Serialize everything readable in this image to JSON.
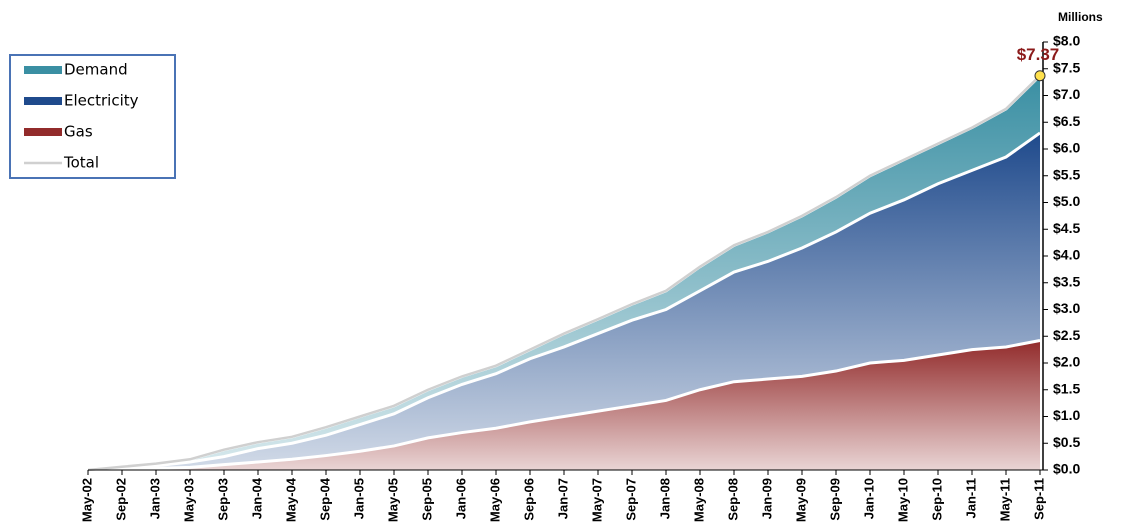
{
  "chart_data": {
    "type": "stacked-area",
    "y_axis_label": "Millions",
    "categories": [
      "May-02",
      "Sep-02",
      "Jan-03",
      "May-03",
      "Sep-03",
      "Jan-04",
      "May-04",
      "Sep-04",
      "Jan-05",
      "May-05",
      "Sep-05",
      "Jan-06",
      "May-06",
      "Sep-06",
      "Jan-07",
      "May-07",
      "Sep-07",
      "Jan-08",
      "May-08",
      "Sep-08",
      "Jan-09",
      "May-09",
      "Sep-09",
      "Jan-10",
      "May-10",
      "Sep-10",
      "Jan-11",
      "May-11",
      "Sep-11"
    ],
    "series": [
      {
        "name": "Demand",
        "type": "area",
        "color": "#3a8fa3",
        "values": [
          0,
          0.02,
          0.04,
          0.05,
          0.13,
          0.12,
          0.12,
          0.15,
          0.15,
          0.15,
          0.15,
          0.15,
          0.15,
          0.17,
          0.25,
          0.27,
          0.3,
          0.35,
          0.45,
          0.5,
          0.55,
          0.6,
          0.65,
          0.7,
          0.75,
          0.75,
          0.8,
          0.9,
          1.07
        ]
      },
      {
        "name": "Electricity",
        "type": "area",
        "color": "#1f4a8c",
        "values": [
          0,
          0.02,
          0.05,
          0.1,
          0.15,
          0.25,
          0.3,
          0.38,
          0.5,
          0.6,
          0.75,
          0.9,
          1.02,
          1.18,
          1.3,
          1.45,
          1.6,
          1.7,
          1.85,
          2.05,
          2.2,
          2.4,
          2.6,
          2.8,
          3.0,
          3.2,
          3.35,
          3.55,
          3.88
        ]
      },
      {
        "name": "Gas",
        "type": "area",
        "color": "#922b2b",
        "values": [
          0,
          0.02,
          0.03,
          0.05,
          0.1,
          0.15,
          0.2,
          0.27,
          0.35,
          0.45,
          0.6,
          0.7,
          0.78,
          0.9,
          1.0,
          1.1,
          1.2,
          1.3,
          1.5,
          1.65,
          1.7,
          1.75,
          1.85,
          2.0,
          2.05,
          2.15,
          2.25,
          2.3,
          2.42
        ]
      },
      {
        "name": "Total",
        "type": "line",
        "color": "#d0d0d0",
        "values": [
          0,
          0.06,
          0.12,
          0.2,
          0.38,
          0.52,
          0.62,
          0.8,
          1.0,
          1.2,
          1.5,
          1.75,
          1.95,
          2.25,
          2.55,
          2.82,
          3.1,
          3.35,
          3.8,
          4.2,
          4.45,
          4.75,
          5.1,
          5.5,
          5.8,
          6.1,
          6.4,
          6.75,
          7.37
        ]
      }
    ],
    "annotation": {
      "text": "$7.37",
      "value": 7.37,
      "color": "#8b1a1a",
      "marker_color": "#ffe14d"
    },
    "ylim": [
      0,
      8
    ],
    "yticks": [
      {
        "value": 0,
        "label": "$0.0"
      },
      {
        "value": 0.5,
        "label": "$0.5"
      },
      {
        "value": 1,
        "label": "$1.0"
      },
      {
        "value": 1.5,
        "label": "$1.5"
      },
      {
        "value": 2,
        "label": "$2.0"
      },
      {
        "value": 2.5,
        "label": "$2.5"
      },
      {
        "value": 3,
        "label": "$3.0"
      },
      {
        "value": 3.5,
        "label": "$3.5"
      },
      {
        "value": 4,
        "label": "$4.0"
      },
      {
        "value": 4.5,
        "label": "$4.5"
      },
      {
        "value": 5,
        "label": "$5.0"
      },
      {
        "value": 5.5,
        "label": "$5.5"
      },
      {
        "value": 6,
        "label": "$6.0"
      },
      {
        "value": 6.5,
        "label": "$6.5"
      },
      {
        "value": 7,
        "label": "$7.0"
      },
      {
        "value": 7.5,
        "label": "$7.5"
      },
      {
        "value": 8,
        "label": "$8.0"
      }
    ],
    "y_axis_side": "right",
    "legend": "upper left",
    "grid": false
  }
}
